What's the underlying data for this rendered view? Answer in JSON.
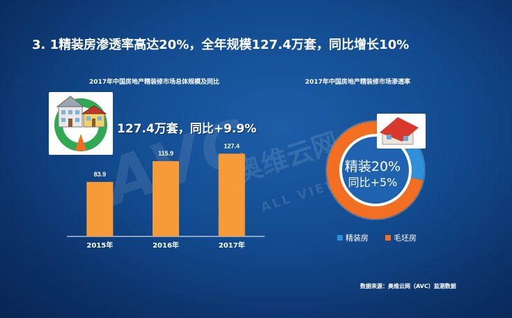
{
  "slide_title": "3. 1精装房渗透率高达20%，全年规模127.4万套，同比增长10%",
  "highlight_text": "127.4万套，同比+9.9%",
  "watermark": {
    "logo": "AVC",
    "cn": "奥维云网",
    "en": "ALL VIEW CLOUD"
  },
  "source": "数据来源：奥维云网（AVC）监测数据",
  "colors": {
    "orange": "#f79a3a",
    "blue": "#2f8fd8",
    "ring_orange": "#f26f22",
    "ring_blue": "#2f8fd8"
  },
  "chart_data": [
    {
      "type": "bar",
      "title": "2017年中国房地产精装修市场总体规模及同比",
      "categories": [
        "2015年",
        "2016年",
        "2017年"
      ],
      "values": [
        83.9,
        115.9,
        127.4
      ],
      "value_labels": [
        "83.9",
        "115.9",
        "127.4"
      ],
      "ylim": [
        0,
        160
      ]
    },
    {
      "type": "pie",
      "title": "2017年中国房地产精装修市场渗透率",
      "labels": [
        "精装房",
        "毛坯房"
      ],
      "values": [
        20,
        80
      ],
      "center_main": "精装20%",
      "center_sub": "同比+5%"
    }
  ]
}
